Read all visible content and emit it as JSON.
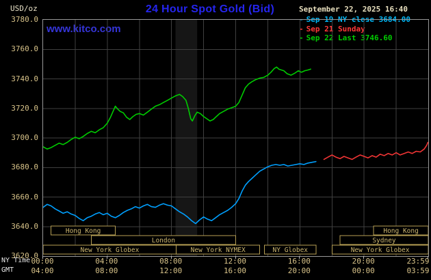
{
  "header": {
    "units_label": "USD/oz",
    "title": "24 Hour Spot Gold (Bid)",
    "datetime": "September 22, 2025 16:40",
    "watermark": "www.kitco.com"
  },
  "colors": {
    "grid": "#404040",
    "session_border": "#b7a055",
    "session_text": "#cdb770"
  },
  "legend": [
    {
      "label": "Sep 19 NY close 3684.00",
      "color": "#00b8f8"
    },
    {
      "label": "Sep 21 Sunday",
      "color": "#ff3838"
    },
    {
      "label": "Sep 22 Last 3746.60",
      "color": "#00cc00"
    }
  ],
  "axes": {
    "ny_caption": "NY Time",
    "gmt_caption": "GMT",
    "x_ticks_hours": [
      0,
      4,
      8,
      12,
      16,
      20,
      23.983
    ],
    "ny_tick_labels": [
      "00:00",
      "04:00",
      "08:00",
      "12:00",
      "16:00",
      "20:00",
      "23:59"
    ],
    "gmt_tick_labels": [
      "04:00",
      "08:00",
      "12:00",
      "16:00",
      "20:00",
      "00:00",
      "03:59"
    ],
    "y_ticks": [
      3620,
      3640,
      3660,
      3680,
      3700,
      3720,
      3740,
      3760,
      3780
    ],
    "y_tick_labels": [
      "3620.0",
      "3640.0",
      "3660.0",
      "3680.0",
      "3700.0",
      "3720.0",
      "3740.0",
      "3760.0",
      "3780.0"
    ],
    "x_grid_step_hours": 2
  },
  "sessions": {
    "rows": [
      [
        {
          "label": "Hong Kong",
          "start": 0.5,
          "end": 4.5
        },
        {
          "label": "Hong Kong",
          "start": 20.6,
          "end": 24
        }
      ],
      [
        {
          "label": "London",
          "start": 3.0,
          "end": 12.0
        },
        {
          "label": "Sydney",
          "start": 18.5,
          "end": 24
        }
      ],
      [
        {
          "label": "New York Globex",
          "start": 0,
          "end": 8.3
        },
        {
          "label": "New York NYMEX",
          "start": 8.3,
          "end": 13.5
        },
        {
          "label": "NY Globex",
          "start": 13.8,
          "end": 17.0
        },
        {
          "label": "New York Globex",
          "start": 18.0,
          "end": 24
        }
      ]
    ]
  },
  "chart_data": {
    "type": "line",
    "title": "24 Hour Spot Gold (Bid)",
    "ylabel": "USD/oz",
    "xlabel": "NY Time (hours 00:00-23:59)",
    "xlim": [
      0,
      24
    ],
    "ylim": [
      3620,
      3780
    ],
    "grid": true,
    "legend_position": "top-right",
    "shaded_bands": [
      {
        "x0": 8.25,
        "x1": 9.6,
        "color": "#161616"
      }
    ],
    "series": [
      {
        "key": "sep19",
        "name": "Sep 19 NY close 3684.00",
        "color": "#00a0ff",
        "points": [
          [
            0,
            3653
          ],
          [
            0.25,
            3655
          ],
          [
            0.5,
            3654
          ],
          [
            0.75,
            3652
          ],
          [
            1,
            3650.5
          ],
          [
            1.25,
            3649
          ],
          [
            1.5,
            3650
          ],
          [
            1.75,
            3648.5
          ],
          [
            2,
            3647.5
          ],
          [
            2.25,
            3645.5
          ],
          [
            2.5,
            3644
          ],
          [
            2.75,
            3646
          ],
          [
            3,
            3647
          ],
          [
            3.25,
            3648.5
          ],
          [
            3.5,
            3649.5
          ],
          [
            3.75,
            3648
          ],
          [
            4,
            3649
          ],
          [
            4.25,
            3647
          ],
          [
            4.5,
            3646
          ],
          [
            4.75,
            3647.5
          ],
          [
            5,
            3649.5
          ],
          [
            5.25,
            3651
          ],
          [
            5.5,
            3652
          ],
          [
            5.75,
            3653.5
          ],
          [
            6,
            3652.5
          ],
          [
            6.25,
            3654
          ],
          [
            6.5,
            3655
          ],
          [
            6.75,
            3653.5
          ],
          [
            7,
            3653
          ],
          [
            7.25,
            3654.5
          ],
          [
            7.5,
            3655.5
          ],
          [
            7.75,
            3654.5
          ],
          [
            8,
            3654
          ],
          [
            8.25,
            3652
          ],
          [
            8.5,
            3650
          ],
          [
            8.75,
            3648.5
          ],
          [
            9,
            3646.5
          ],
          [
            9.25,
            3644
          ],
          [
            9.5,
            3642
          ],
          [
            9.75,
            3644.5
          ],
          [
            10,
            3646.5
          ],
          [
            10.25,
            3645
          ],
          [
            10.5,
            3644
          ],
          [
            10.75,
            3646
          ],
          [
            11,
            3648
          ],
          [
            11.25,
            3649.5
          ],
          [
            11.5,
            3651
          ],
          [
            11.75,
            3653
          ],
          [
            12,
            3655.5
          ],
          [
            12.2,
            3659
          ],
          [
            12.4,
            3664
          ],
          [
            12.6,
            3668
          ],
          [
            12.8,
            3670.5
          ],
          [
            13,
            3672.5
          ],
          [
            13.25,
            3675
          ],
          [
            13.5,
            3677.5
          ],
          [
            13.75,
            3679
          ],
          [
            14,
            3680.5
          ],
          [
            14.25,
            3681.5
          ],
          [
            14.5,
            3682
          ],
          [
            14.75,
            3681.5
          ],
          [
            15,
            3682
          ],
          [
            15.25,
            3681
          ],
          [
            15.5,
            3681.5
          ],
          [
            15.75,
            3682
          ],
          [
            16,
            3682.5
          ],
          [
            16.25,
            3682
          ],
          [
            16.5,
            3683
          ],
          [
            16.75,
            3683.5
          ],
          [
            17,
            3684
          ]
        ]
      },
      {
        "key": "sep21",
        "name": "Sep 21 Sunday",
        "color": "#f23535",
        "points": [
          [
            17.5,
            3685.5
          ],
          [
            17.75,
            3687
          ],
          [
            18,
            3688.5
          ],
          [
            18.25,
            3687
          ],
          [
            18.5,
            3686
          ],
          [
            18.75,
            3687.5
          ],
          [
            19,
            3686.5
          ],
          [
            19.25,
            3685.5
          ],
          [
            19.5,
            3687
          ],
          [
            19.75,
            3688.5
          ],
          [
            20,
            3687.5
          ],
          [
            20.25,
            3686.5
          ],
          [
            20.5,
            3688
          ],
          [
            20.75,
            3687
          ],
          [
            21,
            3689
          ],
          [
            21.25,
            3688
          ],
          [
            21.5,
            3689.5
          ],
          [
            21.75,
            3688.5
          ],
          [
            22,
            3690
          ],
          [
            22.25,
            3688.5
          ],
          [
            22.5,
            3689.5
          ],
          [
            22.75,
            3690.5
          ],
          [
            23,
            3689.5
          ],
          [
            23.25,
            3691
          ],
          [
            23.5,
            3690.5
          ],
          [
            23.75,
            3692.5
          ],
          [
            23.9,
            3695
          ],
          [
            23.98,
            3697
          ]
        ]
      },
      {
        "key": "sep22",
        "name": "Sep 22 Last 3746.60",
        "color": "#00cc00",
        "points": [
          [
            0,
            3694
          ],
          [
            0.25,
            3692.5
          ],
          [
            0.5,
            3693.5
          ],
          [
            0.75,
            3695
          ],
          [
            1,
            3696.5
          ],
          [
            1.25,
            3695.5
          ],
          [
            1.5,
            3697
          ],
          [
            1.75,
            3699
          ],
          [
            2,
            3700.5
          ],
          [
            2.25,
            3699.5
          ],
          [
            2.5,
            3701
          ],
          [
            2.75,
            3703
          ],
          [
            3,
            3704.5
          ],
          [
            3.25,
            3703.5
          ],
          [
            3.5,
            3705.5
          ],
          [
            3.75,
            3707
          ],
          [
            4,
            3710
          ],
          [
            4.2,
            3714
          ],
          [
            4.4,
            3719
          ],
          [
            4.5,
            3721.5
          ],
          [
            4.65,
            3719.5
          ],
          [
            4.8,
            3718
          ],
          [
            5,
            3717
          ],
          [
            5.2,
            3714
          ],
          [
            5.4,
            3712.5
          ],
          [
            5.6,
            3714.5
          ],
          [
            5.8,
            3716
          ],
          [
            6,
            3716.5
          ],
          [
            6.25,
            3715.5
          ],
          [
            6.5,
            3717.5
          ],
          [
            6.75,
            3719.5
          ],
          [
            7,
            3721.5
          ],
          [
            7.25,
            3722.5
          ],
          [
            7.5,
            3724
          ],
          [
            7.75,
            3725.5
          ],
          [
            8,
            3727
          ],
          [
            8.25,
            3728.5
          ],
          [
            8.5,
            3729.5
          ],
          [
            8.7,
            3728
          ],
          [
            8.9,
            3725.5
          ],
          [
            9.05,
            3720
          ],
          [
            9.2,
            3713
          ],
          [
            9.3,
            3711.5
          ],
          [
            9.45,
            3715
          ],
          [
            9.6,
            3717.5
          ],
          [
            9.8,
            3716.5
          ],
          [
            10,
            3714.5
          ],
          [
            10.2,
            3713
          ],
          [
            10.4,
            3711.5
          ],
          [
            10.6,
            3712.5
          ],
          [
            10.8,
            3714.5
          ],
          [
            11,
            3716.5
          ],
          [
            11.25,
            3718
          ],
          [
            11.5,
            3719.5
          ],
          [
            11.75,
            3720.5
          ],
          [
            12,
            3721.5
          ],
          [
            12.2,
            3724
          ],
          [
            12.4,
            3729
          ],
          [
            12.6,
            3734
          ],
          [
            12.8,
            3736.5
          ],
          [
            13,
            3738
          ],
          [
            13.25,
            3739.5
          ],
          [
            13.5,
            3740.5
          ],
          [
            13.75,
            3741
          ],
          [
            14,
            3742.5
          ],
          [
            14.2,
            3744.5
          ],
          [
            14.4,
            3747
          ],
          [
            14.55,
            3748
          ],
          [
            14.7,
            3746.5
          ],
          [
            15,
            3745.5
          ],
          [
            15.2,
            3743.5
          ],
          [
            15.45,
            3742.5
          ],
          [
            15.7,
            3744
          ],
          [
            15.9,
            3745.5
          ],
          [
            16.1,
            3744.5
          ],
          [
            16.3,
            3745.5
          ],
          [
            16.5,
            3746
          ],
          [
            16.67,
            3746.6
          ]
        ]
      }
    ]
  }
}
